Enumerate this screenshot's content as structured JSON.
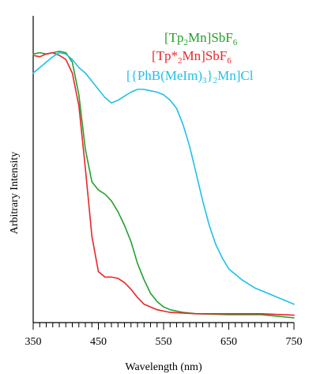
{
  "chart_data": {
    "type": "line",
    "xlabel": "Wavelength (nm)",
    "ylabel": "Arbitrary Intensity",
    "xlim": [
      350,
      750
    ],
    "ylim": [
      0,
      1
    ],
    "x_ticks": [
      350,
      450,
      550,
      650,
      750
    ],
    "minor_tick_step": 10,
    "grid": false,
    "legend_position": "top-right",
    "series": [
      {
        "name": "[Tp2Mn]SbF6",
        "legend": [
          {
            "t": "[Tp"
          },
          {
            "t": "2",
            "sub": true
          },
          {
            "t": "Mn]SbF"
          },
          {
            "t": "6",
            "sub": true
          }
        ],
        "color": "#22a02a",
        "points": [
          [
            350,
            0.97
          ],
          [
            360,
            0.975
          ],
          [
            370,
            0.97
          ],
          [
            380,
            0.975
          ],
          [
            390,
            0.98
          ],
          [
            400,
            0.975
          ],
          [
            410,
            0.94
          ],
          [
            420,
            0.82
          ],
          [
            430,
            0.62
          ],
          [
            440,
            0.5
          ],
          [
            450,
            0.47
          ],
          [
            460,
            0.455
          ],
          [
            470,
            0.43
          ],
          [
            480,
            0.39
          ],
          [
            490,
            0.34
          ],
          [
            500,
            0.28
          ],
          [
            510,
            0.2
          ],
          [
            520,
            0.14
          ],
          [
            530,
            0.09
          ],
          [
            540,
            0.06
          ],
          [
            550,
            0.04
          ],
          [
            560,
            0.03
          ],
          [
            580,
            0.02
          ],
          [
            600,
            0.015
          ],
          [
            650,
            0.012
          ],
          [
            700,
            0.012
          ],
          [
            750,
            0.0
          ]
        ]
      },
      {
        "name": "[Tp*2Mn]SbF6",
        "legend": [
          {
            "t": "[Tp*"
          },
          {
            "t": "2",
            "sub": true
          },
          {
            "t": "Mn]SbF"
          },
          {
            "t": "6",
            "sub": true
          }
        ],
        "color": "#e8262a",
        "points": [
          [
            350,
            0.965
          ],
          [
            360,
            0.96
          ],
          [
            370,
            0.97
          ],
          [
            380,
            0.975
          ],
          [
            390,
            0.965
          ],
          [
            400,
            0.95
          ],
          [
            410,
            0.9
          ],
          [
            420,
            0.78
          ],
          [
            430,
            0.55
          ],
          [
            440,
            0.3
          ],
          [
            450,
            0.17
          ],
          [
            460,
            0.15
          ],
          [
            470,
            0.15
          ],
          [
            480,
            0.145
          ],
          [
            490,
            0.13
          ],
          [
            500,
            0.105
          ],
          [
            510,
            0.075
          ],
          [
            520,
            0.05
          ],
          [
            540,
            0.03
          ],
          [
            560,
            0.02
          ],
          [
            600,
            0.015
          ],
          [
            650,
            0.015
          ],
          [
            700,
            0.015
          ],
          [
            750,
            0.01
          ]
        ]
      },
      {
        "name": "[{PhB(MeIm)3}2Mn]Cl",
        "legend": [
          {
            "t": "[{PhB(MeIm)"
          },
          {
            "t": "3",
            "sub": true
          },
          {
            "t": "}"
          },
          {
            "t": "2",
            "sub": true
          },
          {
            "t": "Mn]Cl"
          }
        ],
        "color": "#1fc0e8",
        "points": [
          [
            350,
            0.9
          ],
          [
            360,
            0.92
          ],
          [
            370,
            0.94
          ],
          [
            380,
            0.96
          ],
          [
            390,
            0.975
          ],
          [
            400,
            0.97
          ],
          [
            410,
            0.95
          ],
          [
            420,
            0.92
          ],
          [
            430,
            0.9
          ],
          [
            440,
            0.87
          ],
          [
            450,
            0.84
          ],
          [
            460,
            0.81
          ],
          [
            470,
            0.79
          ],
          [
            480,
            0.8
          ],
          [
            490,
            0.815
          ],
          [
            500,
            0.83
          ],
          [
            510,
            0.84
          ],
          [
            520,
            0.84
          ],
          [
            530,
            0.835
          ],
          [
            540,
            0.83
          ],
          [
            550,
            0.82
          ],
          [
            560,
            0.8
          ],
          [
            570,
            0.77
          ],
          [
            580,
            0.71
          ],
          [
            590,
            0.63
          ],
          [
            600,
            0.53
          ],
          [
            610,
            0.43
          ],
          [
            620,
            0.34
          ],
          [
            630,
            0.27
          ],
          [
            640,
            0.22
          ],
          [
            650,
            0.18
          ],
          [
            670,
            0.14
          ],
          [
            690,
            0.11
          ],
          [
            710,
            0.09
          ],
          [
            730,
            0.07
          ],
          [
            750,
            0.05
          ]
        ]
      }
    ]
  }
}
